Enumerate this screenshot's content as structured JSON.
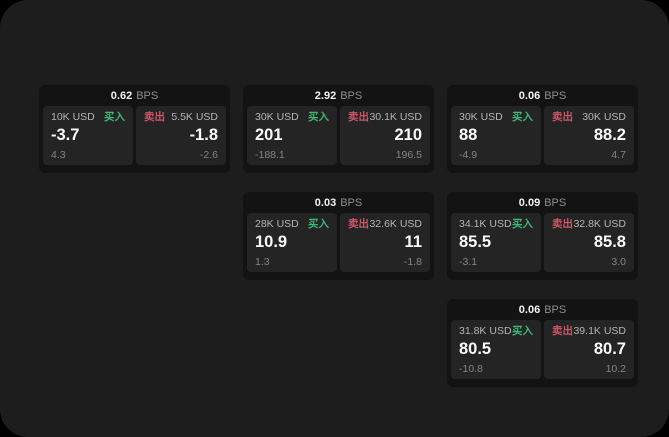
{
  "labels": {
    "bps_unit": "BPS",
    "buy": "买入",
    "sell": "卖出"
  },
  "colors": {
    "buy_green": "#3bb873",
    "sell_red": "#d05467",
    "surface": "#1d1d1d",
    "card_background": "#131313",
    "panel_background": "#242424"
  },
  "cards": [
    {
      "bps": "0.62",
      "buy": {
        "amount": "10K USD",
        "price": "-3.7",
        "change": "4.3"
      },
      "sell": {
        "amount": "5.5K USD",
        "price": "-1.8",
        "change": "-2.6"
      }
    },
    {
      "bps": "2.92",
      "buy": {
        "amount": "30K USD",
        "price": "201",
        "change": "-188.1"
      },
      "sell": {
        "amount": "30.1K USD",
        "price": "210",
        "change": "196.5"
      }
    },
    {
      "bps": "0.06",
      "buy": {
        "amount": "30K USD",
        "price": "88",
        "change": "-4.9"
      },
      "sell": {
        "amount": "30K USD",
        "price": "88.2",
        "change": "4.7"
      }
    },
    {
      "bps": "0.03",
      "buy": {
        "amount": "28K USD",
        "price": "10.9",
        "change": "1.3"
      },
      "sell": {
        "amount": "32.6K USD",
        "price": "11",
        "change": "-1.8"
      }
    },
    {
      "bps": "0.09",
      "buy": {
        "amount": "34.1K USD",
        "price": "85.5",
        "change": "-3.1"
      },
      "sell": {
        "amount": "32.8K USD",
        "price": "85.8",
        "change": "3.0"
      }
    },
    {
      "bps": "0.06",
      "buy": {
        "amount": "31.8K USD",
        "price": "80.5",
        "change": "-10.8"
      },
      "sell": {
        "amount": "39.1K USD",
        "price": "80.7",
        "change": "10.2"
      }
    }
  ]
}
